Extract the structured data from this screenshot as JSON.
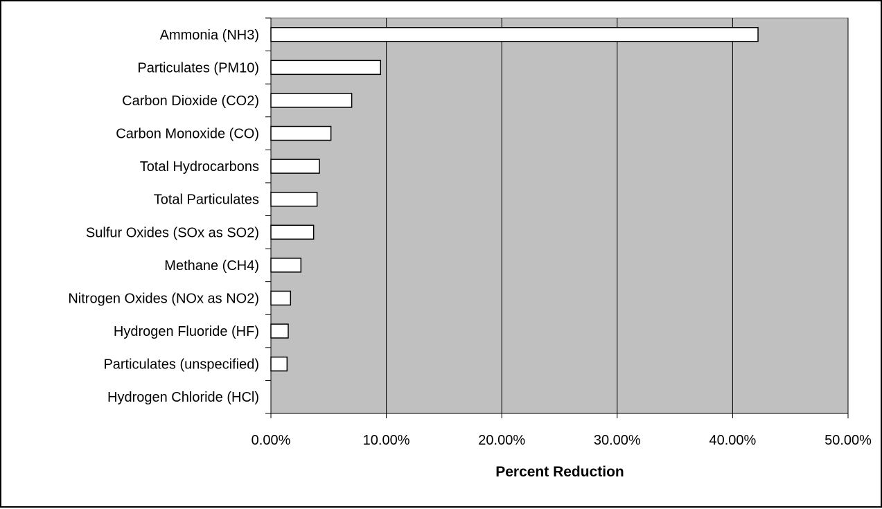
{
  "chart_data": {
    "type": "bar",
    "orientation": "horizontal",
    "categories": [
      "Ammonia (NH3)",
      "Particulates (PM10)",
      "Carbon Dioxide (CO2)",
      "Carbon Monoxide (CO)",
      "Total Hydrocarbons",
      "Total Particulates",
      "Sulfur Oxides (SOx as SO2)",
      "Methane (CH4)",
      "Nitrogen Oxides (NOx as NO2)",
      "Hydrogen Fluoride (HF)",
      "Particulates (unspecified)",
      "Hydrogen Chloride (HCl)"
    ],
    "values": [
      42.2,
      9.5,
      7.0,
      5.2,
      4.2,
      4.0,
      3.7,
      2.6,
      1.7,
      1.5,
      1.4,
      0.0
    ],
    "xlabel": "Percent Reduction",
    "xlim": [
      0,
      50
    ],
    "xticks": [
      "0.00%",
      "10.00%",
      "20.00%",
      "30.00%",
      "40.00%",
      "50.00%"
    ],
    "grid": "vertical",
    "legend": "none",
    "colors": {
      "plot_background": "#c0c0c0",
      "bar_fill": "#ffffff",
      "bar_stroke": "#000000",
      "gridline": "#000000"
    }
  }
}
